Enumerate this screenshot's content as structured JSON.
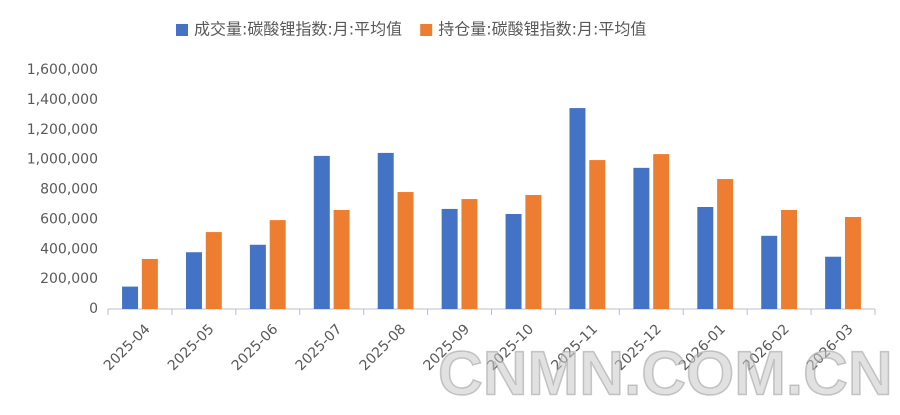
{
  "chart_data": {
    "type": "bar",
    "categories": [
      "2025-04",
      "2025-05",
      "2025-06",
      "2025-07",
      "2025-08",
      "2025-09",
      "2025-10",
      "2025-11",
      "2025-12",
      "2026-01",
      "2026-02",
      "2026-03"
    ],
    "series": [
      {
        "name": "成交量:碳酸锂指数:月:平均值",
        "color": "#4472c4",
        "values": [
          150000,
          380000,
          430000,
          1025000,
          1045000,
          670000,
          636000,
          1345000,
          945000,
          683000,
          490000,
          350000
        ]
      },
      {
        "name": "持仓量:碳酸锂指数:月:平均值",
        "color": "#ed7d31",
        "values": [
          335000,
          515000,
          595000,
          663000,
          783000,
          736000,
          763000,
          997000,
          1037000,
          870000,
          663000,
          616000
        ]
      }
    ],
    "ylim": [
      0,
      1600000
    ],
    "yticks": [
      0,
      {
        "value": 200000,
        "label": "200,000"
      },
      {
        "value": 400000,
        "label": "400,000"
      },
      {
        "value": 600000,
        "label": "600,000"
      },
      {
        "value": 800000,
        "label": "800,000"
      },
      {
        "value": 1000000,
        "label": "1,000,000"
      },
      {
        "value": 1200000,
        "label": "1,200,000"
      },
      {
        "value": 1400000,
        "label": "1,400,000"
      },
      {
        "value": 1600000,
        "label": "1,600,000"
      }
    ],
    "grid": false,
    "legend": "top",
    "watermark": "CNMN.COM.CN"
  }
}
